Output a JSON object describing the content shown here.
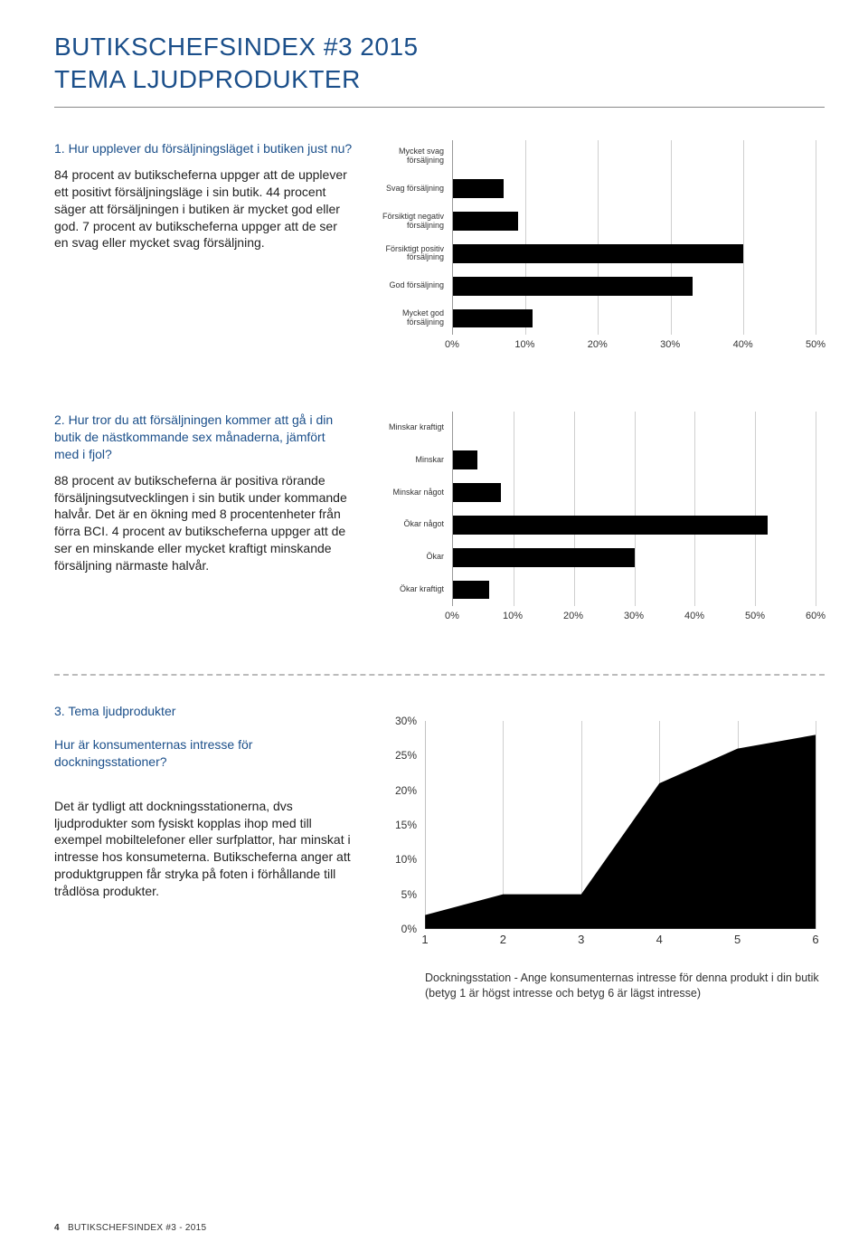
{
  "header": {
    "title_line1": "BUTIKSCHEFSINDEX #3 2015",
    "title_line2": "TEMA LJUDPRODUKTER"
  },
  "section1": {
    "num": "1.",
    "title": "Hur upplever du försäljningsläget i butiken just nu?",
    "body": "84 procent av butikscheferna uppger att de upplever ett positivt försäljningsläge i sin butik. 44 procent säger att försäljningen i butiken är mycket god eller god. 7 procent av butikscheferna uppger att de ser en svag eller mycket svag försäljning.",
    "chart": {
      "type": "bar-horizontal",
      "xmax": 50,
      "xtick_step": 10,
      "bar_color": "#000000",
      "grid_color": "#cfcfcf",
      "categories": [
        "Mycket svag försäljning",
        "Svag försäljning",
        "Försiktigt negativ försäljning",
        "Försiktigt positiv försäljning",
        "God försäljning",
        "Mycket god försäljning"
      ],
      "values": [
        0,
        7,
        9,
        40,
        33,
        11
      ],
      "xticks": [
        "0%",
        "10%",
        "20%",
        "30%",
        "40%",
        "50%"
      ]
    }
  },
  "section2": {
    "num": "2.",
    "title": "Hur tror du att försäljningen kommer att gå i din butik de nästkommande sex månaderna, jämfört med i fjol?",
    "body": "88 procent av butikscheferna är positiva rörande försäljningsutvecklingen i sin butik under kommande halvår. Det är en ökning med 8 procentenheter från förra BCI. 4 procent av butikscheferna uppger att de ser en minskande eller mycket kraftigt minskande försäljning närmaste halvår.",
    "chart": {
      "type": "bar-horizontal",
      "xmax": 60,
      "xtick_step": 10,
      "bar_color": "#000000",
      "grid_color": "#cfcfcf",
      "categories": [
        "Minskar kraftigt",
        "Minskar",
        "Minskar något",
        "Ökar något",
        "Ökar",
        "Ökar kraftigt"
      ],
      "values": [
        0,
        4,
        8,
        52,
        30,
        6
      ],
      "xticks": [
        "0%",
        "10%",
        "20%",
        "30%",
        "40%",
        "50%",
        "60%"
      ]
    }
  },
  "section3": {
    "num": "3.",
    "title": "Tema ljudprodukter",
    "subq": "Hur är konsumenternas intresse för dockningsstationer?",
    "body": "Det är tydligt att dockningsstationerna, dvs ljudprodukter som fysiskt kopplas ihop med till exempel mobiltelefoner eller surfplattor, har minskat i intresse hos konsumeterna. Butikscheferna anger att produktgruppen får stryka på foten i förhållande till trådlösa produkter.",
    "chart": {
      "type": "area",
      "ymax": 30,
      "ytick_step": 5,
      "fill_color": "#000000",
      "grid_color": "#cfcfcf",
      "x": [
        1,
        2,
        3,
        4,
        5,
        6
      ],
      "y": [
        2,
        5,
        5,
        21,
        26,
        28
      ],
      "yticks": [
        "0%",
        "5%",
        "10%",
        "15%",
        "20%",
        "25%",
        "30%"
      ],
      "xticks": [
        "1",
        "2",
        "3",
        "4",
        "5",
        "6"
      ],
      "caption": "Dockningsstation - Ange konsumenternas intresse för denna produkt i din butik (betyg 1 är högst intresse och betyg 6 är lägst intresse)"
    }
  },
  "footer": {
    "page": "4",
    "text": "BUTIKSCHEFSINDEX #3 - 2015"
  }
}
